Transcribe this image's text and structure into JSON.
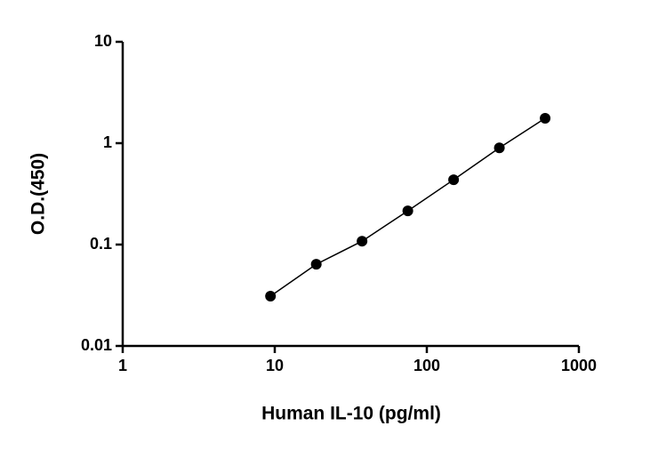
{
  "chart_data": {
    "type": "scatter",
    "x_label": "Human IL-10 (pg/ml)",
    "y_label": "O.D.(450)",
    "x": [
      9.375,
      18.75,
      37.5,
      75,
      150,
      300,
      600
    ],
    "series": [
      {
        "values": [
          0.031,
          0.064,
          0.108,
          0.215,
          0.436,
          0.9,
          1.76
        ],
        "color": "#000000"
      }
    ],
    "xlim": [
      1,
      1000
    ],
    "ylim": [
      0.01,
      10
    ],
    "xticks": [
      1,
      10,
      100,
      1000
    ],
    "yticks": [
      0.01,
      0.1,
      1,
      10
    ],
    "xscale": "log",
    "yscale": "log",
    "fit_line": true
  }
}
